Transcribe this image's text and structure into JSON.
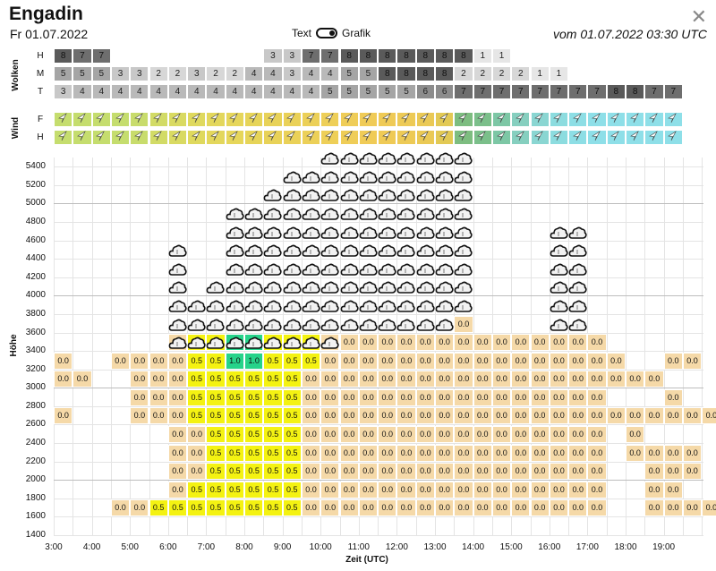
{
  "header": {
    "title": "Engadin",
    "date": "Fr 01.07.2022",
    "toggle_left": "Text",
    "toggle_right": "Grafik",
    "valid": "vom 01.07.2022 03:30 UTC",
    "close_icon": "close-icon"
  },
  "clouds": {
    "label": "Wolken",
    "rows": [
      {
        "label": "H",
        "values": [
          "8",
          "7",
          "7",
          "",
          "",
          "",
          "",
          "",
          "",
          "",
          "",
          "3",
          "3",
          "7",
          "7",
          "8",
          "8",
          "8",
          "8",
          "8",
          "8",
          "8",
          "1",
          "1",
          "",
          "",
          "",
          "",
          "",
          "",
          "",
          "",
          ""
        ]
      },
      {
        "label": "M",
        "values": [
          "5",
          "5",
          "5",
          "3",
          "3",
          "2",
          "2",
          "3",
          "2",
          "2",
          "4",
          "4",
          "3",
          "4",
          "4",
          "5",
          "5",
          "8",
          "8",
          "8",
          "8",
          "2",
          "2",
          "2",
          "2",
          "1",
          "1",
          "",
          "",
          "",
          "",
          "",
          ""
        ]
      },
      {
        "label": "T",
        "values": [
          "3",
          "4",
          "4",
          "4",
          "4",
          "4",
          "4",
          "4",
          "4",
          "4",
          "4",
          "4",
          "4",
          "4",
          "5",
          "5",
          "5",
          "5",
          "5",
          "6",
          "6",
          "7",
          "7",
          "7",
          "7",
          "7",
          "7",
          "7",
          "7",
          "8",
          "8",
          "7",
          "7"
        ]
      }
    ]
  },
  "wind": {
    "label": "Wind",
    "rows": [
      {
        "label": "F",
        "colors": [
          "#c5dd6e",
          "#c5dd6e",
          "#c5dd6e",
          "#c5dd6e",
          "#c8dc6c",
          "#d2db66",
          "#d9da62",
          "#dfd95e",
          "#e3d75c",
          "#e6d65a",
          "#e6d458",
          "#e8d258",
          "#ead158",
          "#ecd058",
          "#eecf58",
          "#efcd58",
          "#f0cb57",
          "#efca56",
          "#edca56",
          "#eac955",
          "#e2c954",
          "#7dbd80",
          "#7bbf8a",
          "#7dc7a5",
          "#86cfbf",
          "#8ad6d2",
          "#8cdcdf",
          "#8ddee5",
          "#8edfe8",
          "#8edfe8",
          "#8edfe8",
          "#8edfe8",
          "#8edfe8"
        ]
      },
      {
        "label": "H",
        "colors": [
          "#c5dd6e",
          "#c5dd6e",
          "#c5dd6e",
          "#c5dd6e",
          "#c8dc6c",
          "#d2db66",
          "#d9da62",
          "#dfd95e",
          "#e3d75c",
          "#e6d65a",
          "#e6d458",
          "#e8d258",
          "#ead158",
          "#ecd058",
          "#eecf58",
          "#efcd58",
          "#f0cb57",
          "#efca56",
          "#edca56",
          "#eac955",
          "#e2c954",
          "#7dbd80",
          "#7bbf8a",
          "#7dc7a5",
          "#86cfbf",
          "#8ad6d2",
          "#8cdcdf",
          "#8ddee5",
          "#8edfe8",
          "#8edfe8",
          "#8edfe8",
          "#8edfe8",
          "#8edfe8"
        ]
      }
    ],
    "arrow_icon": "wind-arrow-icon"
  },
  "plot": {
    "ylabel": "Höhe",
    "xlabel": "Zeit (UTC)",
    "yticks": [
      "5400",
      "5200",
      "5000",
      "4800",
      "4600",
      "4400",
      "4200",
      "4000",
      "3800",
      "3600",
      "3400",
      "3200",
      "3000",
      "2800",
      "2600",
      "2400",
      "2200",
      "2000",
      "1800",
      "1600",
      "1400"
    ],
    "xticks": [
      "3:00",
      "4:00",
      "5:00",
      "6:00",
      "7:00",
      "8:00",
      "9:00",
      "10:00",
      "11:00",
      "12:00",
      "13:00",
      "14:00",
      "15:00",
      "16:00",
      "17:00",
      "18:00",
      "19:00"
    ],
    "cloud_icon": "cloud-icon",
    "colors": {
      "zero": "#f5d9a8",
      "half": "#f4f212",
      "one": "#26d38a"
    }
  },
  "chart_data": {
    "type": "heatmap",
    "xlabel": "Zeit (UTC)",
    "ylabel": "Höhe",
    "x_start": "3:00",
    "x_step_minutes": 30,
    "y_levels": [
      3400,
      3200,
      3000,
      2800,
      2600,
      2400,
      2200,
      2000,
      1800,
      1600
    ],
    "cells": [
      {
        "y": 3400,
        "values": [
          null,
          null,
          null,
          null,
          null,
          null,
          "0.0",
          "0.5",
          "0.5",
          "1.0",
          "1.0",
          "0.5",
          "0.5",
          "0.5",
          "0.0",
          "0.0",
          "0.0",
          "0.0",
          "0.0",
          "0.0",
          "0.0",
          "0.0",
          "0.0",
          "0.0",
          "0.0",
          "0.0",
          "0.0",
          "0.0",
          "0.0",
          null,
          null,
          null,
          null
        ]
      },
      {
        "y": 3200,
        "values": [
          "0.0",
          null,
          null,
          "0.0",
          "0.0",
          "0.0",
          "0.0",
          "0.5",
          "0.5",
          "1.0",
          "1.0",
          "0.5",
          "0.5",
          "0.5",
          "0.0",
          "0.0",
          "0.0",
          "0.0",
          "0.0",
          "0.0",
          "0.0",
          "0.0",
          "0.0",
          "0.0",
          "0.0",
          "0.0",
          "0.0",
          "0.0",
          "0.0",
          "0.0",
          null,
          null,
          "0.0",
          "0.0",
          null
        ]
      },
      {
        "y": 3000,
        "values": [
          "0.0",
          "0.0",
          null,
          null,
          "0.0",
          "0.0",
          "0.0",
          "0.5",
          "0.5",
          "0.5",
          "0.5",
          "0.5",
          "0.5",
          "0.0",
          "0.0",
          "0.0",
          "0.0",
          "0.0",
          "0.0",
          "0.0",
          "0.0",
          "0.0",
          "0.0",
          "0.0",
          "0.0",
          "0.0",
          "0.0",
          "0.0",
          "0.0",
          "0.0",
          "0.0",
          "0.0",
          null,
          null,
          null
        ]
      },
      {
        "y": 2800,
        "values": [
          null,
          null,
          null,
          null,
          "0.0",
          "0.0",
          "0.0",
          "0.5",
          "0.5",
          "0.5",
          "0.5",
          "0.5",
          "0.5",
          "0.0",
          "0.0",
          "0.0",
          "0.0",
          "0.0",
          "0.0",
          "0.0",
          "0.0",
          "0.0",
          "0.0",
          "0.0",
          "0.0",
          "0.0",
          "0.0",
          "0.0",
          "0.0",
          null,
          null,
          null,
          "0.0",
          null
        ]
      },
      {
        "y": 2600,
        "values": [
          "0.0",
          null,
          null,
          null,
          "0.0",
          "0.0",
          "0.0",
          "0.5",
          "0.5",
          "0.5",
          "0.5",
          "0.5",
          "0.5",
          "0.0",
          "0.0",
          "0.0",
          "0.0",
          "0.0",
          "0.0",
          "0.0",
          "0.0",
          "0.0",
          "0.0",
          "0.0",
          "0.0",
          "0.0",
          "0.0",
          "0.0",
          "0.0",
          "0.0",
          "0.0",
          "0.0",
          "0.0",
          "0.0",
          "0.0"
        ]
      },
      {
        "y": 2400,
        "values": [
          null,
          null,
          null,
          null,
          null,
          null,
          "0.0",
          "0.0",
          "0.5",
          "0.5",
          "0.5",
          "0.5",
          "0.5",
          "0.0",
          "0.0",
          "0.0",
          "0.0",
          "0.0",
          "0.0",
          "0.0",
          "0.0",
          "0.0",
          "0.0",
          "0.0",
          "0.0",
          "0.0",
          "0.0",
          "0.0",
          "0.0",
          null,
          "0.0",
          null,
          null,
          null
        ]
      },
      {
        "y": 2200,
        "values": [
          null,
          null,
          null,
          null,
          null,
          null,
          "0.0",
          "0.0",
          "0.5",
          "0.5",
          "0.5",
          "0.5",
          "0.5",
          "0.0",
          "0.0",
          "0.0",
          "0.0",
          "0.0",
          "0.0",
          "0.0",
          "0.0",
          "0.0",
          "0.0",
          "0.0",
          "0.0",
          "0.0",
          "0.0",
          "0.0",
          "0.0",
          null,
          "0.0",
          "0.0",
          "0.0",
          "0.0",
          null
        ]
      },
      {
        "y": 2000,
        "values": [
          null,
          null,
          null,
          null,
          null,
          null,
          "0.0",
          "0.0",
          "0.5",
          "0.5",
          "0.5",
          "0.5",
          "0.5",
          "0.0",
          "0.0",
          "0.0",
          "0.0",
          "0.0",
          "0.0",
          "0.0",
          "0.0",
          "0.0",
          "0.0",
          "0.0",
          "0.0",
          "0.0",
          "0.0",
          "0.0",
          "0.0",
          null,
          null,
          "0.0",
          "0.0",
          "0.0",
          null
        ]
      },
      {
        "y": 1800,
        "values": [
          null,
          null,
          null,
          null,
          null,
          null,
          "0.0",
          "0.5",
          "0.5",
          "0.5",
          "0.5",
          "0.5",
          "0.5",
          "0.0",
          "0.0",
          "0.0",
          "0.0",
          "0.0",
          "0.0",
          "0.0",
          "0.0",
          "0.0",
          "0.0",
          "0.0",
          "0.0",
          "0.0",
          "0.0",
          "0.0",
          "0.0",
          null,
          null,
          "0.0",
          "0.0",
          null,
          null
        ]
      },
      {
        "y": 1600,
        "values": [
          null,
          null,
          null,
          "0.0",
          "0.0",
          "0.5",
          "0.5",
          "0.5",
          "0.5",
          "0.5",
          "0.5",
          "0.5",
          "0.5",
          "0.0",
          "0.0",
          "0.0",
          "0.0",
          "0.0",
          "0.0",
          "0.0",
          "0.0",
          "0.0",
          "0.0",
          "0.0",
          "0.0",
          "0.0",
          "0.0",
          "0.0",
          "0.0",
          null,
          null,
          "0.0",
          "0.0",
          "0.0",
          "0.0"
        ]
      }
    ],
    "extra_cells": [
      {
        "y": 3600,
        "x_index": 21,
        "value": "0.0"
      }
    ],
    "cloud_columns": [
      {
        "x_index": 6,
        "bottom": 3400,
        "top": 4400
      },
      {
        "x_index": 7,
        "bottom": 3400,
        "top": 3800
      },
      {
        "x_index": 8,
        "bottom": 3400,
        "top": 4000
      },
      {
        "x_index": 9,
        "bottom": 3400,
        "top": 4800
      },
      {
        "x_index": 10,
        "bottom": 3400,
        "top": 4800
      },
      {
        "x_index": 11,
        "bottom": 3400,
        "top": 5000
      },
      {
        "x_index": 12,
        "bottom": 3400,
        "top": 5200
      },
      {
        "x_index": 13,
        "bottom": 3400,
        "top": 5200
      },
      {
        "x_index": 14,
        "bottom": 3400,
        "top": 5400
      },
      {
        "x_index": 15,
        "bottom": 3600,
        "top": 5400
      },
      {
        "x_index": 16,
        "bottom": 3600,
        "top": 5400
      },
      {
        "x_index": 17,
        "bottom": 3600,
        "top": 5400
      },
      {
        "x_index": 18,
        "bottom": 3600,
        "top": 5400
      },
      {
        "x_index": 19,
        "bottom": 3600,
        "top": 5400
      },
      {
        "x_index": 20,
        "bottom": 3600,
        "top": 5400
      },
      {
        "x_index": 21,
        "bottom": 3800,
        "top": 5400
      },
      {
        "x_index": 26,
        "bottom": 3600,
        "top": 4600
      },
      {
        "x_index": 27,
        "bottom": 3600,
        "top": 4600
      }
    ]
  }
}
